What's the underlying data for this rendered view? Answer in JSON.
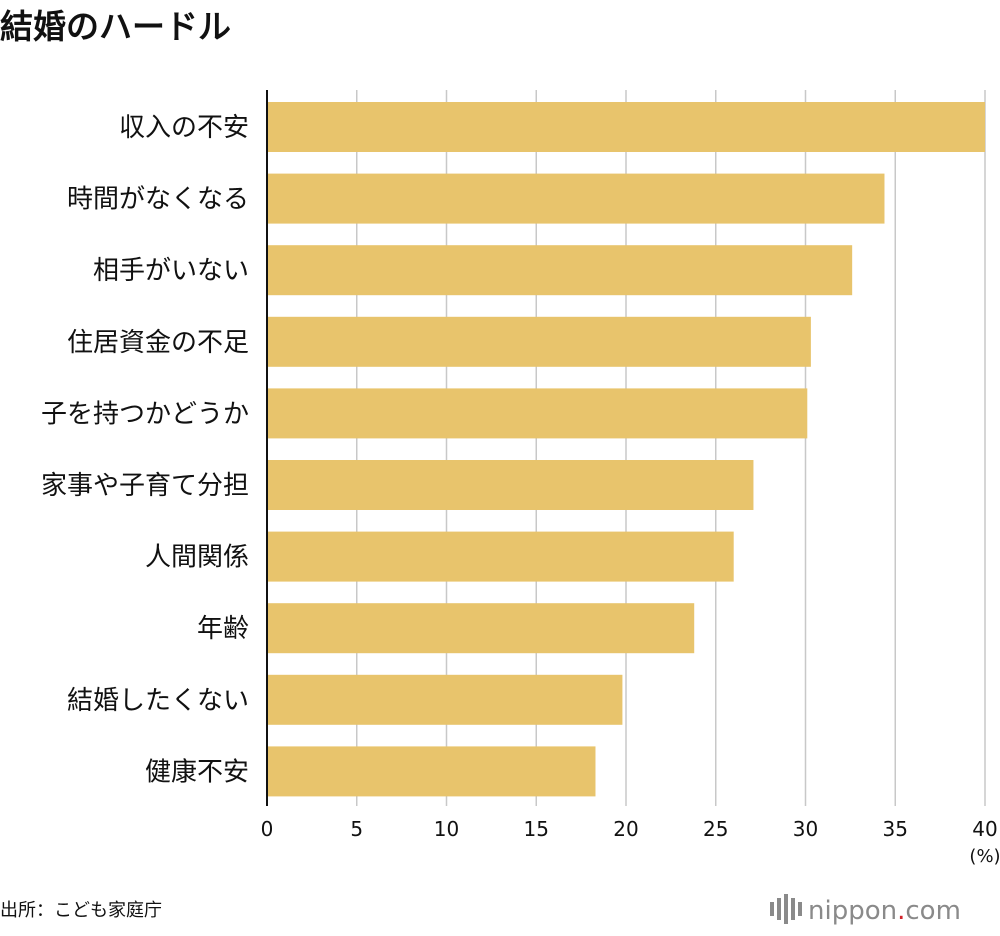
{
  "title": "結婚のハードル",
  "source": "出所：こども家庭庁",
  "logo": {
    "name": "nippon",
    "dot": ".",
    "suffix": "com"
  },
  "colors": {
    "bar": "#E8C46C",
    "grid": "#C8C8C8",
    "axis": "#111111",
    "logo_grey": "#8a8a8a",
    "logo_red": "#d2232a"
  },
  "chart_data": {
    "type": "bar",
    "orientation": "horizontal",
    "title": "結婚のハードル",
    "categories": [
      "収入の不安",
      "時間がなくなる",
      "相手がいない",
      "住居資金の不足",
      "子を持つかどうか",
      "家事や子育て分担",
      "人間関係",
      "年齢",
      "結婚したくない",
      "健康不安"
    ],
    "values": [
      40.0,
      34.4,
      32.6,
      30.3,
      30.1,
      27.1,
      26.0,
      23.8,
      19.8,
      18.3
    ],
    "xlim": [
      0,
      40
    ],
    "xticks": [
      0,
      5,
      10,
      15,
      20,
      25,
      30,
      35,
      40
    ],
    "xunit": "(%)",
    "grid": "vertical",
    "legend": "none"
  }
}
